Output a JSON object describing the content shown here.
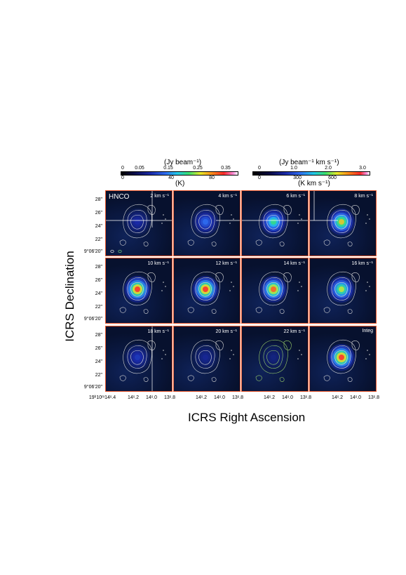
{
  "colorbar_left": {
    "title_top": "(Jy beam⁻¹)",
    "ticks_top": [
      "0",
      "0.05",
      "0.15",
      "0.25",
      "0.35"
    ],
    "ticks_bottom": [
      "0",
      "40",
      "80"
    ],
    "title_bottom": "(K)"
  },
  "colorbar_right": {
    "title_top": "(Jy beam⁻¹ km s⁻¹)",
    "ticks_top": [
      "0",
      "1.0",
      "2.0",
      "3.0"
    ],
    "ticks_bottom": [
      "0",
      "300",
      "600"
    ],
    "title_bottom": "(K  km s⁻¹)"
  },
  "molecule": "HNCO",
  "panels": [
    {
      "label": "2 km s⁻¹",
      "peak": 0.25
    },
    {
      "label": "4 km s⁻¹",
      "peak": 0.45
    },
    {
      "label": "6 km s⁻¹",
      "peak": 0.7
    },
    {
      "label": "8 km s⁻¹",
      "peak": 0.85
    },
    {
      "label": "10 km s⁻¹",
      "peak": 1.0
    },
    {
      "label": "12 km s⁻¹",
      "peak": 1.0
    },
    {
      "label": "14 km s⁻¹",
      "peak": 0.95
    },
    {
      "label": "16 km s⁻¹",
      "peak": 0.8
    },
    {
      "label": "18 km s⁻¹",
      "peak": 0.3
    },
    {
      "label": "20 km s⁻¹",
      "peak": 0.2
    },
    {
      "label": "22 km s⁻¹",
      "peak": 0.15
    },
    {
      "label": "Integ",
      "peak": 1.0
    }
  ],
  "y_ticks": [
    "28\"",
    "26\"",
    "24\"",
    "22\"",
    "9°06'20\""
  ],
  "x_ticks": [
    "19ʰ10ᵐ14ˢ.4",
    "14ˢ.2",
    "14ˢ.0",
    "13ˢ.8"
  ],
  "x_axis_title": "ICRS Right Ascension",
  "y_axis_title": "ICRS Declination"
}
